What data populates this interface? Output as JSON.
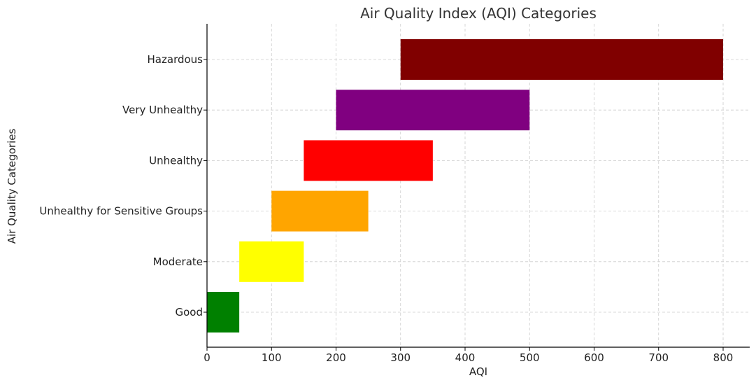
{
  "chart_data": {
    "type": "bar",
    "orientation": "horizontal",
    "title": "Air Quality Index (AQI) Categories",
    "xlabel": "AQI",
    "ylabel": "Air Quality Categories",
    "xlim": [
      0,
      840
    ],
    "xticks": [
      0,
      100,
      200,
      300,
      400,
      500,
      600,
      700,
      800
    ],
    "grid": true,
    "categories": [
      "Good",
      "Moderate",
      "Unhealthy for Sensitive Groups",
      "Unhealthy",
      "Very Unhealthy",
      "Hazardous"
    ],
    "ranges": [
      [
        0,
        50
      ],
      [
        50,
        150
      ],
      [
        100,
        250
      ],
      [
        150,
        350
      ],
      [
        200,
        500
      ],
      [
        300,
        800
      ]
    ],
    "colors": [
      "#008000",
      "#ffff00",
      "#ffa500",
      "#ff0000",
      "#800080",
      "#800000"
    ]
  }
}
